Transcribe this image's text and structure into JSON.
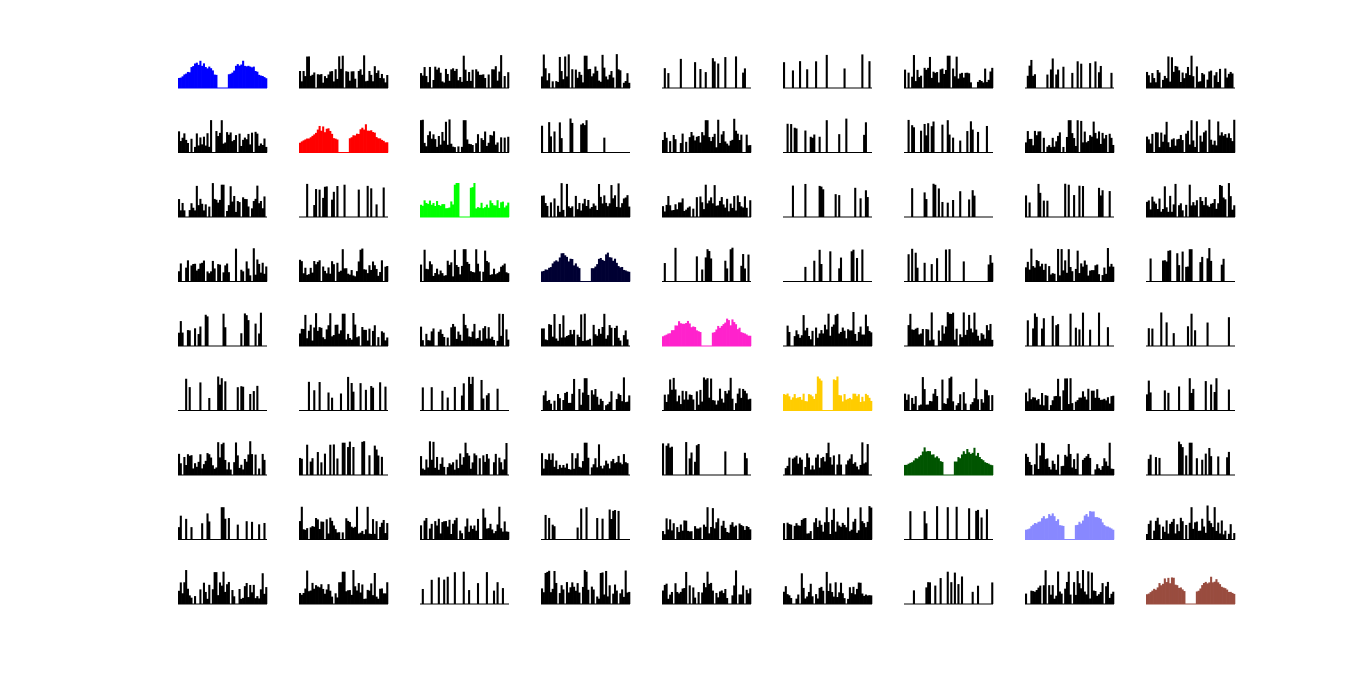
{
  "figure": {
    "background": "#ffffff",
    "default_color": "#000000"
  },
  "chart_data": {
    "type": "bar",
    "description_kind": "correlogram-matrix",
    "rows": 9,
    "cols": 9,
    "bins_per_panel": 50,
    "axes_visible": false,
    "grid": false,
    "diagonal_colors": [
      "#0000ff",
      "#ff0000",
      "#00ff00",
      "#000033",
      "#ff22cc",
      "#ffcc00",
      "#005500",
      "#8888ff",
      "#994c3f"
    ],
    "diagonal_shape": "two lobes with central gap",
    "offdiagonal_shape": "sparse random spikes, dense near center",
    "panel_baseline_y_values": [
      0
    ],
    "ylim": [
      0,
      1
    ]
  }
}
